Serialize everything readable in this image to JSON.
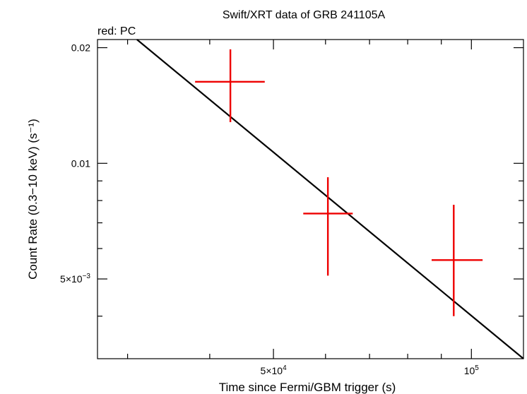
{
  "chart_data": {
    "type": "scatter",
    "title": "Swift/XRT data of GRB 241105A",
    "subtitle": "red: PC",
    "xlabel": "Time since Fermi/GBM trigger (s)",
    "ylabel": "Count Rate (0.3−10 keV) (s⁻¹)",
    "xscale": "log",
    "yscale": "log",
    "xlim": [
      27000,
      120000
    ],
    "ylim": [
      0.0031,
      0.021
    ],
    "x_ticks": [
      {
        "value": 50000,
        "mantissa": "5×10",
        "exp": "4"
      },
      {
        "value": 100000,
        "mantissa": "10",
        "exp": "5"
      }
    ],
    "y_ticks": [
      {
        "value": 0.02,
        "label": "0.02"
      },
      {
        "value": 0.01,
        "label": "0.01"
      },
      {
        "value": 0.005,
        "mantissa": "5×10",
        "exp": "−3"
      }
    ],
    "series": [
      {
        "color": "#ee0000",
        "points": [
          {
            "x": 43000,
            "y": 0.0163,
            "xerr": [
              38000,
              48500
            ],
            "yerr": [
              0.0128,
              0.0198
            ]
          },
          {
            "x": 60500,
            "y": 0.0074,
            "xerr": [
              55500,
              66000
            ],
            "yerr": [
              0.0051,
              0.0092
            ]
          },
          {
            "x": 94000,
            "y": 0.0056,
            "xerr": [
              87000,
              104000
            ],
            "yerr": [
              0.004,
              0.0078
            ]
          }
        ]
      }
    ],
    "fit_line": {
      "color": "#000000",
      "points": [
        {
          "x": 31000,
          "y": 0.021
        },
        {
          "x": 120000,
          "y": 0.0031
        }
      ]
    },
    "grid": false,
    "legend": "none"
  }
}
